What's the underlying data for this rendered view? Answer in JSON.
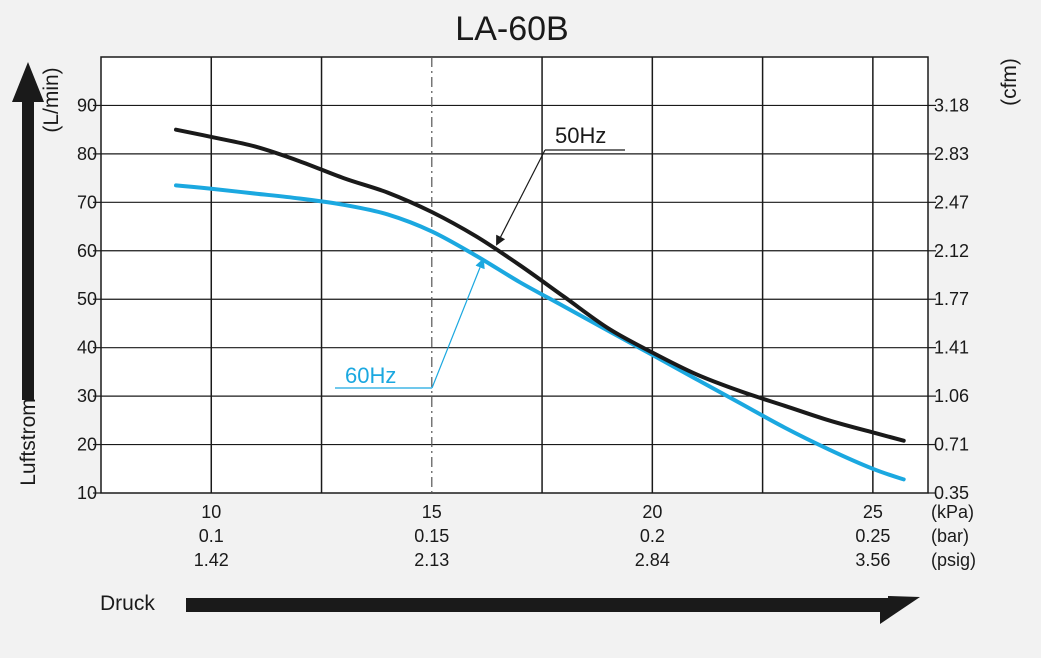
{
  "chart_data": {
    "type": "line",
    "title": "LA-60B",
    "ylabel": "Luftstrom",
    "xlabel": "Druck",
    "y_unit_left": "(L/min)",
    "y_unit_right": "(cfm)",
    "ylim": [
      10,
      100
    ],
    "xlim": [
      7.5,
      26.25
    ],
    "grid": true,
    "y_ticks_left": [
      10,
      20,
      30,
      40,
      50,
      60,
      70,
      80,
      90
    ],
    "y_ticks_right": [
      "0.35",
      "0.71",
      "1.06",
      "1.41",
      "1.77",
      "2.12",
      "2.47",
      "2.83",
      "3.18"
    ],
    "x_ticks": [
      10,
      15,
      20,
      25
    ],
    "x_tick_rows": [
      {
        "unit": "(kPa)",
        "labels": [
          "10",
          "15",
          "20",
          "25"
        ]
      },
      {
        "unit": "(bar)",
        "labels": [
          "0.1",
          "0.15",
          "0.2",
          "0.25"
        ]
      },
      {
        "unit": "(psig)",
        "labels": [
          "1.42",
          "2.13",
          "2.84",
          "3.56"
        ]
      }
    ],
    "series": [
      {
        "name": "50Hz",
        "color": "#1a1a1a",
        "x": [
          9.2,
          10,
          11,
          12,
          13,
          14,
          15,
          16,
          17,
          18,
          19,
          20,
          21,
          22,
          23,
          24,
          25,
          25.7
        ],
        "y": [
          85,
          83.5,
          81.5,
          78.5,
          75,
          72,
          68,
          63,
          57,
          50.5,
          44,
          39,
          34.5,
          31,
          28,
          25,
          22.5,
          20.8
        ]
      },
      {
        "name": "60Hz",
        "color": "#1ba8e0",
        "x": [
          9.2,
          10,
          11,
          12,
          13,
          14,
          15,
          16,
          17,
          18,
          19,
          20,
          21,
          22,
          23,
          24,
          25,
          25.7
        ],
        "y": [
          73.5,
          72.8,
          71.8,
          70.8,
          69.5,
          67.5,
          64,
          59,
          53.5,
          48.5,
          43.5,
          38.5,
          33.5,
          28.5,
          23.5,
          19,
          15,
          12.8
        ]
      }
    ]
  }
}
